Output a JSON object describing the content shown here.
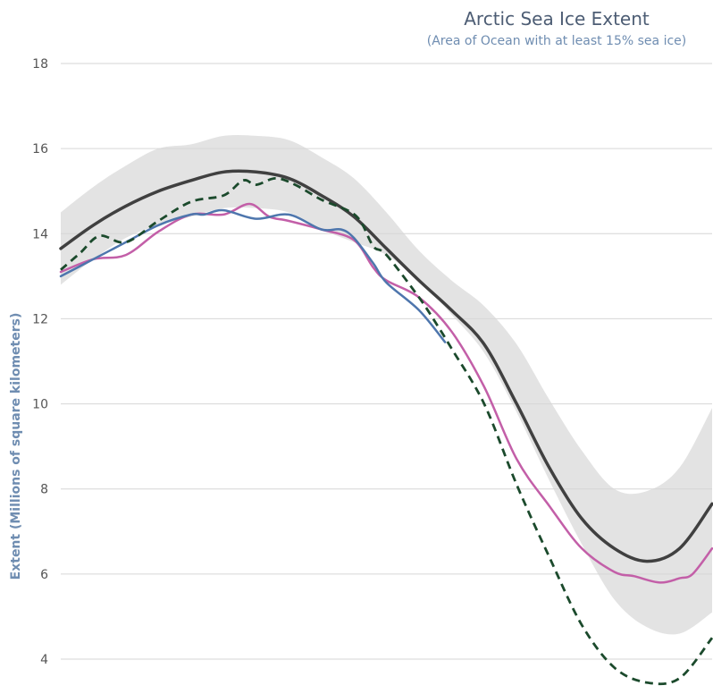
{
  "chart_data": {
    "type": "line",
    "title": "Arctic Sea Ice Extent",
    "subtitle": "(Area of Ocean with at least 15% sea ice)",
    "xlabel": "",
    "ylabel": "Extent (Millions of square kilometers)",
    "ylim": [
      4,
      18
    ],
    "yticks": [
      4,
      6,
      8,
      10,
      12,
      14,
      16,
      18
    ],
    "xlim": [
      0,
      100
    ],
    "grid": true,
    "legend": "none",
    "colors": {
      "band": "#e3e3e3",
      "median": "#404040",
      "pink": "#c35fa8",
      "blue": "#4e76ad",
      "dashed": "#1b4a2c",
      "grid": "#d6d6d6"
    },
    "band": {
      "x": [
        0,
        5,
        10,
        15,
        20,
        25,
        30,
        35,
        40,
        45,
        50,
        55,
        60,
        65,
        70,
        75,
        80,
        85,
        90,
        95,
        100
      ],
      "upper": [
        14.5,
        15.1,
        15.6,
        16.0,
        16.1,
        16.3,
        16.3,
        16.2,
        15.8,
        15.3,
        14.5,
        13.6,
        12.9,
        12.3,
        11.4,
        10.1,
        8.9,
        8.0,
        7.95,
        8.5,
        9.9
      ],
      "lower": [
        12.8,
        13.4,
        13.9,
        14.2,
        14.4,
        14.6,
        14.6,
        14.5,
        14.1,
        13.8,
        13.5,
        12.9,
        12.1,
        11.2,
        9.8,
        8.2,
        6.7,
        5.4,
        4.75,
        4.6,
        5.1
      ]
    },
    "series": [
      {
        "style": "median",
        "x": [
          0,
          5,
          10,
          15,
          20,
          25,
          30,
          35,
          40,
          45,
          50,
          55,
          60,
          65,
          70,
          75,
          80,
          85,
          90,
          95,
          100
        ],
        "values": [
          13.65,
          14.2,
          14.65,
          15.0,
          15.25,
          15.45,
          15.45,
          15.3,
          14.9,
          14.4,
          13.65,
          12.9,
          12.2,
          11.4,
          10.0,
          8.5,
          7.3,
          6.6,
          6.3,
          6.6,
          7.65
        ]
      },
      {
        "style": "pink",
        "x": [
          0,
          5,
          10,
          15,
          20,
          25,
          29,
          32,
          35,
          40,
          45,
          48,
          50,
          55,
          60,
          65,
          70,
          75,
          80,
          85,
          88,
          92,
          95,
          97,
          100
        ],
        "values": [
          13.1,
          13.4,
          13.5,
          14.05,
          14.45,
          14.45,
          14.7,
          14.4,
          14.3,
          14.1,
          13.85,
          13.2,
          12.9,
          12.5,
          11.7,
          10.4,
          8.7,
          7.6,
          6.6,
          6.05,
          5.95,
          5.8,
          5.9,
          6.0,
          6.6
        ]
      },
      {
        "style": "blue",
        "x": [
          0,
          5,
          10,
          15,
          20,
          22,
          25,
          30,
          35,
          40,
          43,
          45,
          48,
          50,
          55,
          59
        ],
        "values": [
          13.0,
          13.4,
          13.8,
          14.2,
          14.45,
          14.45,
          14.55,
          14.35,
          14.45,
          14.1,
          14.1,
          13.9,
          13.3,
          12.85,
          12.2,
          11.45
        ]
      },
      {
        "style": "dashed",
        "x": [
          0,
          3,
          6,
          10,
          15,
          20,
          25,
          28,
          30,
          33,
          36,
          40,
          44,
          46,
          48,
          50,
          55,
          58,
          60,
          65,
          70,
          75,
          80,
          85,
          90,
          95,
          100
        ],
        "values": [
          13.15,
          13.55,
          13.95,
          13.8,
          14.3,
          14.75,
          14.9,
          15.25,
          15.15,
          15.3,
          15.15,
          14.8,
          14.55,
          14.3,
          13.7,
          13.5,
          12.5,
          11.8,
          11.3,
          10.0,
          8.1,
          6.4,
          4.8,
          3.8,
          3.45,
          3.55,
          4.5
        ]
      }
    ]
  }
}
